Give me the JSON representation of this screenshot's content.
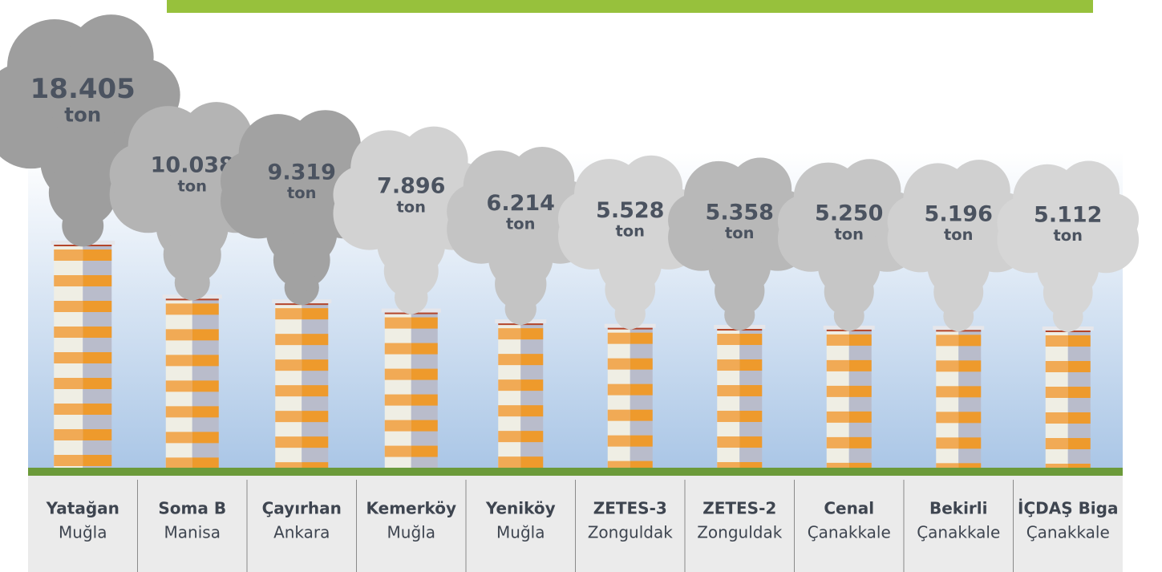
{
  "chart_data": {
    "type": "chimney",
    "categories": [
      "Yatağan",
      "Soma B",
      "Çayırhan",
      "Kemerköy",
      "Yeniköy",
      "ZETES-3",
      "ZETES-2",
      "Cenal",
      "Bekirli",
      "İÇDAŞ Biga"
    ],
    "regions": [
      "Muğla",
      "Manisa",
      "Ankara",
      "Muğla",
      "Muğla",
      "Zonguldak",
      "Zonguldak",
      "Çanakkale",
      "Çanakkale",
      "Çanakkale"
    ],
    "values": [
      18405,
      10038,
      9319,
      7896,
      6214,
      5528,
      5358,
      5250,
      5196,
      5112
    ],
    "value_labels": [
      "18.405",
      "10.038",
      "9.319",
      "7.896",
      "6.214",
      "5.528",
      "5.358",
      "5.250",
      "5.196",
      "5.112"
    ],
    "unit": "ton",
    "colors": [
      "#9e9e9e",
      "#b4b4b4",
      "#a2a2a2",
      "#d2d2d2",
      "#c4c4c4",
      "#d4d4d4",
      "#b8b8b8",
      "#c6c6c6",
      "#d0d0d0",
      "#d6d6d6"
    ]
  }
}
